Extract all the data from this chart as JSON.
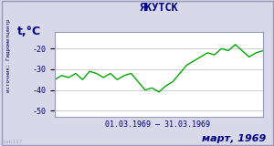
{
  "title": "ЯКУТСК",
  "ylabel": "t,°C",
  "xlabel_date_range": "01.03.1969 – 31.03.1969",
  "footer_month": "март, 1969",
  "source_text": "источник: Гидрометцентр",
  "watermark": "lab127",
  "ylim": [
    -53,
    -12
  ],
  "yticks": [
    -50,
    -40,
    -30,
    -20
  ],
  "days": [
    1,
    2,
    3,
    4,
    5,
    6,
    7,
    8,
    9,
    10,
    11,
    12,
    13,
    14,
    15,
    16,
    17,
    18,
    19,
    20,
    21,
    22,
    23,
    24,
    25,
    26,
    27,
    28,
    29,
    30,
    31
  ],
  "temperatures": [
    -35,
    -33,
    -34,
    -32,
    -35,
    -31,
    -32,
    -34,
    -32,
    -35,
    -33,
    -32,
    -36,
    -40,
    -39,
    -41,
    -38,
    -36,
    -32,
    -28,
    -26,
    -24,
    -22,
    -23,
    -20,
    -21,
    -18,
    -21,
    -24,
    -22,
    -21
  ],
  "line_color": "#00aa00",
  "bg_color": "#d8d8e8",
  "plot_bg_color": "#ffffff",
  "border_color": "#9999bb",
  "title_color": "#000088",
  "label_color": "#000088",
  "tick_color": "#000088",
  "grid_color": "#bbbbcc",
  "footer_color": "#000088",
  "watermark_color": "#aaaacc"
}
